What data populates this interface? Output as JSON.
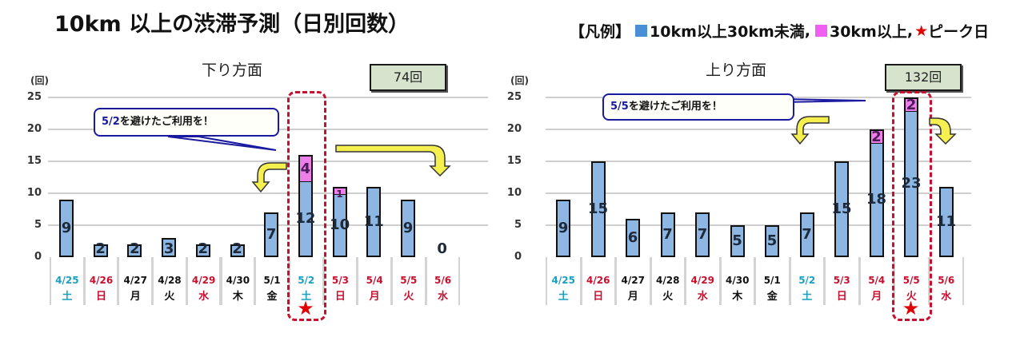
{
  "page": {
    "title": "10km 以上の渋滞予測（日別回数）",
    "legend": {
      "label": "【凡例】",
      "items": [
        {
          "name": "10km以上30km未満",
          "color": "#4a8fd6",
          "icon": "square-swatch"
        },
        {
          "name": "30km以上",
          "color": "#f060f0",
          "icon": "square-swatch"
        },
        {
          "name": "ピーク日",
          "color": "#e00000",
          "icon": "star-icon"
        }
      ]
    }
  },
  "colors": {
    "blue_segment": "#8db7e2",
    "pink_segment": "#ee7ee8",
    "peak_frame": "#c8102e",
    "callout_border": "#1a1aa0",
    "arrow_fill": "#f5f050",
    "total_box": "#d7e4cd",
    "saturday": "#1a9fc0",
    "holiday": "#c8102e",
    "weekday": "#111111"
  },
  "chart_data": [
    {
      "type": "bar",
      "stacked": true,
      "title": "下り方面",
      "total_label": "74回",
      "ylabel": "(回)",
      "ylim": [
        0,
        25
      ],
      "yticks": [
        "25",
        "20",
        "15",
        "10",
        "5",
        "0"
      ],
      "grid": true,
      "categories": [
        "4/25",
        "4/26",
        "4/27",
        "4/28",
        "4/29",
        "4/30",
        "5/1",
        "5/2",
        "5/3",
        "5/4",
        "5/5",
        "5/6"
      ],
      "weekdays": [
        "土",
        "日",
        "月",
        "火",
        "水",
        "木",
        "金",
        "土",
        "日",
        "月",
        "火",
        "水"
      ],
      "day_types": [
        "sat",
        "hol",
        "wd",
        "wd",
        "hol",
        "wd",
        "wd",
        "sat",
        "hol",
        "hol",
        "hol",
        "hol"
      ],
      "series": [
        {
          "name": "10km以上30km未満",
          "values": [
            9,
            2,
            2,
            3,
            2,
            2,
            7,
            12,
            10,
            11,
            9,
            0
          ]
        },
        {
          "name": "30km以上",
          "values": [
            0,
            0,
            0,
            0,
            0,
            0,
            0,
            4,
            1,
            0,
            0,
            0
          ]
        }
      ],
      "value_labels": [
        "9",
        "2",
        "2",
        "3",
        "2",
        "2",
        "7",
        "12",
        "10",
        "11",
        "9",
        "0"
      ],
      "pink_labels": [
        "",
        "",
        "",
        "",
        "",
        "",
        "",
        "4",
        "1",
        "",
        "",
        ""
      ],
      "peak_day": "5/2",
      "peak_index": 7,
      "callout": {
        "highlight": "5/2",
        "text": "を避けたご利用を！"
      }
    },
    {
      "type": "bar",
      "stacked": true,
      "title": "上り方面",
      "total_label": "132回",
      "ylabel": "(回)",
      "ylim": [
        0,
        25
      ],
      "yticks": [
        "25",
        "20",
        "15",
        "10",
        "5",
        "0"
      ],
      "grid": true,
      "categories": [
        "4/25",
        "4/26",
        "4/27",
        "4/28",
        "4/29",
        "4/30",
        "5/1",
        "5/2",
        "5/3",
        "5/4",
        "5/5",
        "5/6"
      ],
      "weekdays": [
        "土",
        "日",
        "月",
        "火",
        "水",
        "木",
        "金",
        "土",
        "日",
        "月",
        "火",
        "水"
      ],
      "day_types": [
        "sat",
        "hol",
        "wd",
        "wd",
        "hol",
        "wd",
        "wd",
        "sat",
        "hol",
        "hol",
        "hol",
        "hol"
      ],
      "series": [
        {
          "name": "10km以上30km未満",
          "values": [
            9,
            15,
            6,
            7,
            7,
            5,
            5,
            7,
            15,
            18,
            23,
            11
          ]
        },
        {
          "name": "30km以上",
          "values": [
            0,
            0,
            0,
            0,
            0,
            0,
            0,
            0,
            0,
            2,
            2,
            0
          ]
        }
      ],
      "value_labels": [
        "9",
        "15",
        "6",
        "7",
        "7",
        "5",
        "5",
        "7",
        "15",
        "18",
        "23",
        "11"
      ],
      "pink_labels": [
        "",
        "",
        "",
        "",
        "",
        "",
        "",
        "",
        "",
        "2",
        "2",
        ""
      ],
      "peak_day": "5/5",
      "peak_index": 10,
      "callout": {
        "highlight": "5/5",
        "text": "を避けたご利用を！"
      }
    }
  ]
}
